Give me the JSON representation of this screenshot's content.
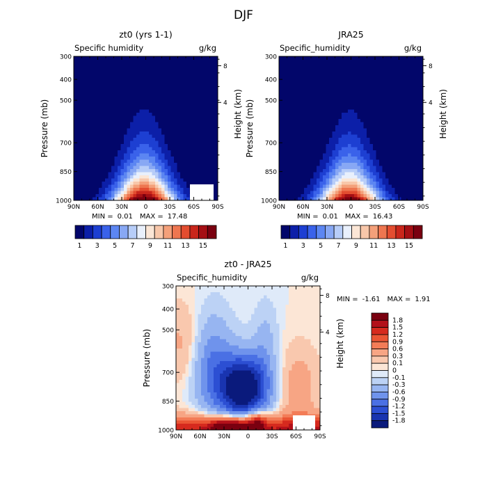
{
  "suptitle": "DJF",
  "chart_data": [
    {
      "type": "heatmap",
      "title": "zt0 (yrs 1-1)",
      "variable": "Specific humidity",
      "units": "g/kg",
      "ylabel": "Pressure (mb)",
      "ylabel_right": "Height (km)",
      "x_ticks": [
        "90N",
        "60N",
        "30N",
        "0",
        "30S",
        "60S",
        "90S"
      ],
      "y_ticks": [
        "300",
        "400",
        "500",
        "700",
        "850",
        "1000"
      ],
      "y_right_ticks": [
        "8",
        "4"
      ],
      "stats": {
        "min_label": "MIN =",
        "min": "0.01",
        "max_label": "MAX =",
        "max": "17.48"
      },
      "colorbar_labels": [
        "1",
        "3",
        "5",
        "7",
        "9",
        "11",
        "13",
        "15"
      ],
      "colorbar_colors": [
        "#02066a",
        "#0c1fa8",
        "#1d3fd2",
        "#3a62ea",
        "#5c86f2",
        "#88a8f4",
        "#b7cdf8",
        "#e9f0fc",
        "#fbe6d6",
        "#f8c7aa",
        "#f4a07a",
        "#ee7650",
        "#e34d30",
        "#c9261b",
        "#a50f14",
        "#7a0010"
      ],
      "max_value": 17.48,
      "grid": false
    },
    {
      "type": "heatmap",
      "title": "JRA25",
      "variable": "Specific_humidity",
      "units": "g/kg",
      "ylabel": "Pressure (mb)",
      "ylabel_right": "Height (km)",
      "x_ticks": [
        "90N",
        "60N",
        "30N",
        "0",
        "30S",
        "60S",
        "90S"
      ],
      "y_ticks": [
        "300",
        "400",
        "500",
        "700",
        "850",
        "1000"
      ],
      "y_right_ticks": [
        "8",
        "4"
      ],
      "stats": {
        "min_label": "MIN =",
        "min": "0.01",
        "max_label": "MAX =",
        "max": "16.43"
      },
      "colorbar_labels": [
        "1",
        "3",
        "5",
        "7",
        "9",
        "11",
        "13",
        "15"
      ],
      "colorbar_colors": [
        "#02066a",
        "#0c1fa8",
        "#1d3fd2",
        "#3a62ea",
        "#5c86f2",
        "#88a8f4",
        "#b7cdf8",
        "#e9f0fc",
        "#fbe6d6",
        "#f8c7aa",
        "#f4a07a",
        "#ee7650",
        "#e34d30",
        "#c9261b",
        "#a50f14",
        "#7a0010"
      ],
      "max_value": 16.43,
      "grid": false
    },
    {
      "type": "heatmap",
      "title": "zt0 - JRA25",
      "variable": "Specific_humidity",
      "units": "g/kg",
      "ylabel": "Pressure (mb)",
      "ylabel_right": "Height (km)",
      "x_ticks": [
        "90N",
        "60N",
        "30N",
        "0",
        "30S",
        "60S",
        "90S"
      ],
      "y_ticks": [
        "300",
        "400",
        "500",
        "700",
        "850",
        "1000"
      ],
      "y_right_ticks": [
        "8",
        "4"
      ],
      "stats": {
        "min_label": "MIN =",
        "min": "-1.61",
        "max_label": "MAX =",
        "max": "1.91"
      },
      "colorbar_labels": [
        "1.8",
        "1.5",
        "1.2",
        "0.9",
        "0.6",
        "0.3",
        "0.1",
        "0",
        "-0.1",
        "-0.3",
        "-0.6",
        "-0.9",
        "-1.2",
        "-1.5",
        "-1.8"
      ],
      "colorbar_colors": [
        "#7a0010",
        "#b3101a",
        "#d62a1e",
        "#ea5534",
        "#f37c57",
        "#f7a584",
        "#f9c8ae",
        "#fce6d6",
        "#dfeaf9",
        "#bcd2f5",
        "#97b5f1",
        "#6f93ec",
        "#4a70e4",
        "#2c4fd3",
        "#1934b0",
        "#0a1a7c"
      ],
      "grid": false
    }
  ]
}
